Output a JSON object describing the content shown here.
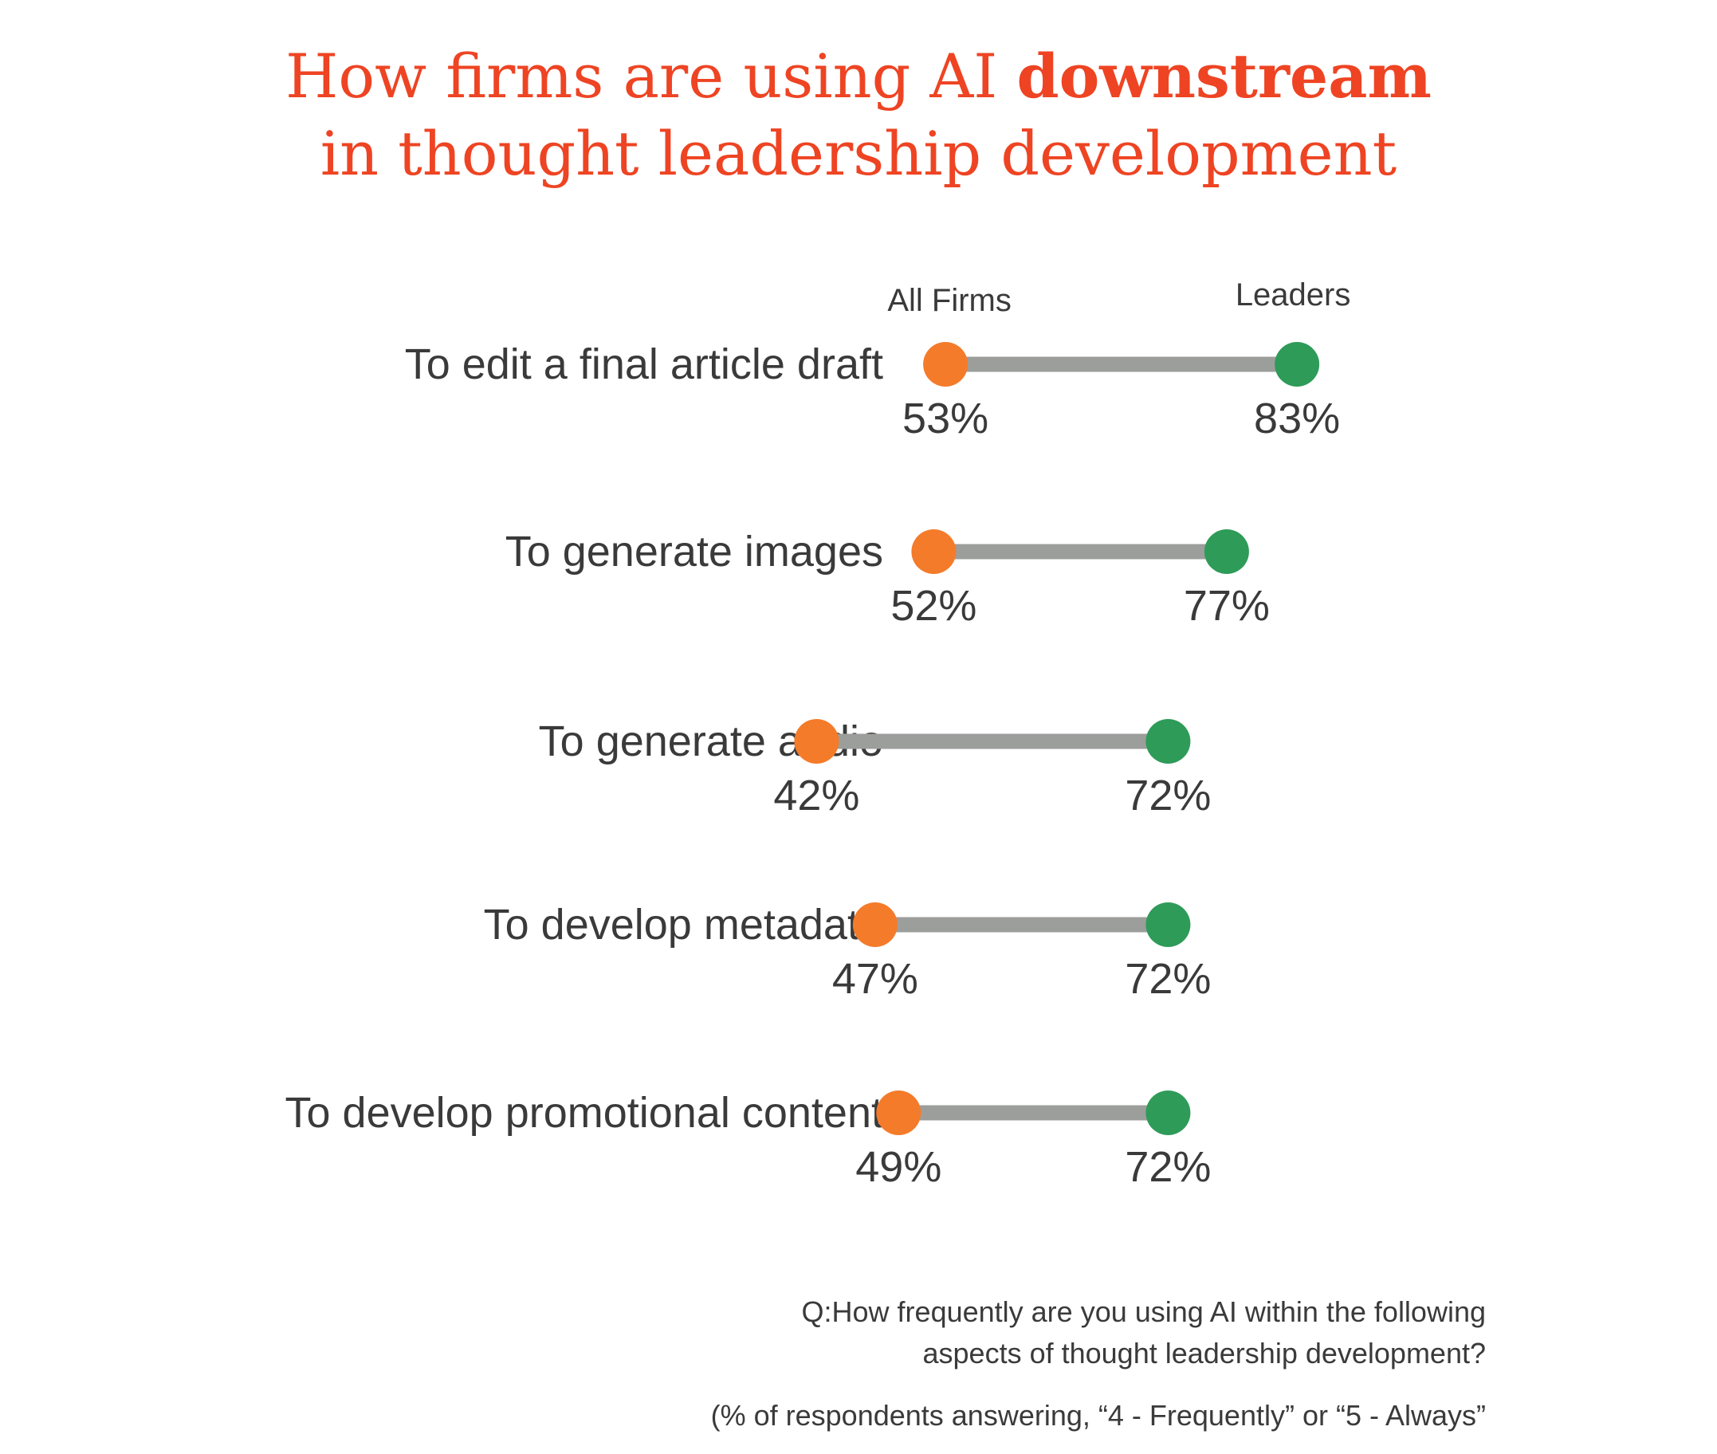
{
  "title": {
    "line1_prefix": "How firms are using AI ",
    "line1_emphasis": "downstream",
    "line2": "in thought leadership development"
  },
  "chart_data": {
    "type": "dumbbell",
    "series": [
      {
        "name": "All Firms",
        "color": "#f47b2a",
        "values": [
          53,
          52,
          42,
          47,
          49
        ]
      },
      {
        "name": "Leaders",
        "color": "#2e9b59",
        "values": [
          83,
          77,
          72,
          72,
          72
        ]
      }
    ],
    "categories": [
      "To edit a final article draft",
      "To generate images",
      "To generate audio",
      "To develop metadata",
      "To develop promotional content"
    ],
    "value_labels": {
      "All Firms": [
        "53%",
        "52%",
        "42%",
        "47%",
        "49%"
      ],
      "Leaders": [
        "83%",
        "77%",
        "72%",
        "72%",
        "72%"
      ]
    },
    "connector_color": "#9c9e9b"
  },
  "footnote": {
    "question_line1": "Q:How frequently are you using AI within the following",
    "question_line2": "aspects of thought leadership development?",
    "base": "(% of respondents answering, “4 - Frequently” or “5 - Always”"
  }
}
